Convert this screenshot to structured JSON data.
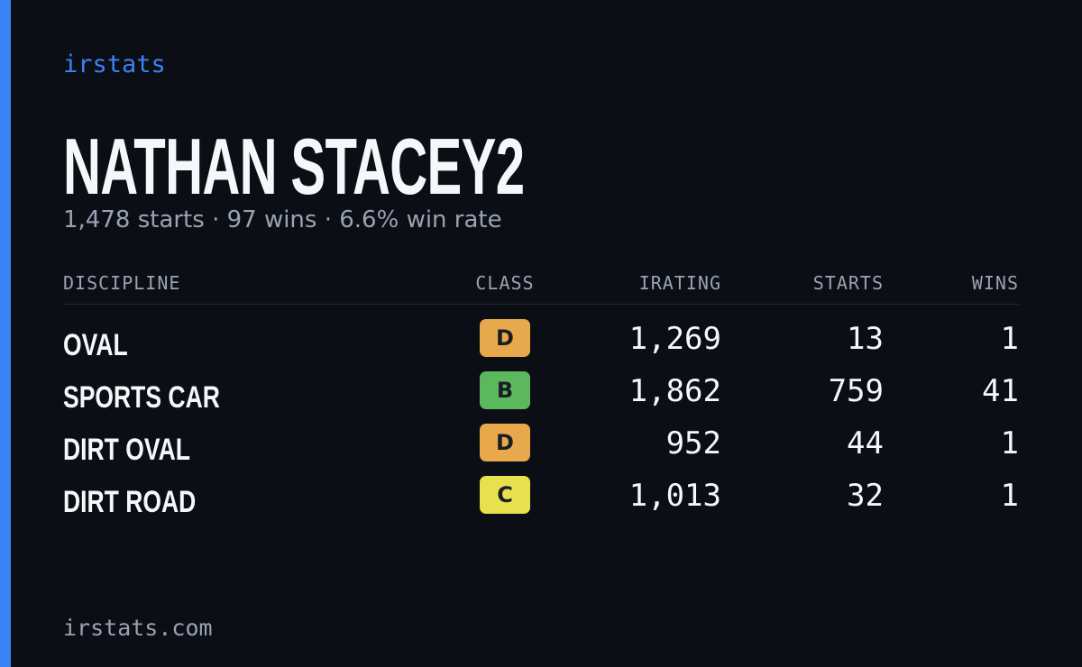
{
  "brand": "irstats",
  "profile": {
    "name": "NATHAN STACEY2",
    "summary": "1,478 starts · 97 wins · 6.6% win rate"
  },
  "table": {
    "headers": [
      "DISCIPLINE",
      "CLASS",
      "IRATING",
      "STARTS",
      "WINS"
    ],
    "rows": [
      {
        "discipline": "OVAL",
        "class": "D",
        "class_color": "#e8a84c",
        "irating": "1,269",
        "starts": "13",
        "wins": "1"
      },
      {
        "discipline": "SPORTS CAR",
        "class": "B",
        "class_color": "#5cb85c",
        "irating": "1,862",
        "starts": "759",
        "wins": "41"
      },
      {
        "discipline": "DIRT OVAL",
        "class": "D",
        "class_color": "#e8a84c",
        "irating": "952",
        "starts": "44",
        "wins": "1"
      },
      {
        "discipline": "DIRT ROAD",
        "class": "C",
        "class_color": "#e8e04c",
        "irating": "1,013",
        "starts": "32",
        "wins": "1"
      }
    ]
  },
  "footer": "irstats.com"
}
